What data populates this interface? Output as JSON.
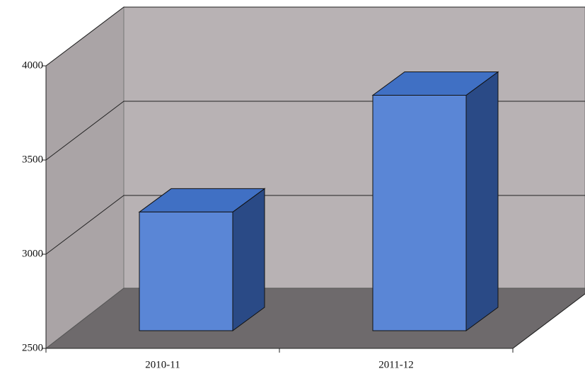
{
  "chart_data": {
    "type": "bar",
    "categories": [
      "2010-11",
      "2011-12"
    ],
    "values": [
      3130,
      3750
    ],
    "color": "#5a86d6",
    "ylim": [
      2500,
      4000
    ],
    "yticks": [
      2500,
      3000,
      3500,
      4000
    ],
    "grid": true
  }
}
